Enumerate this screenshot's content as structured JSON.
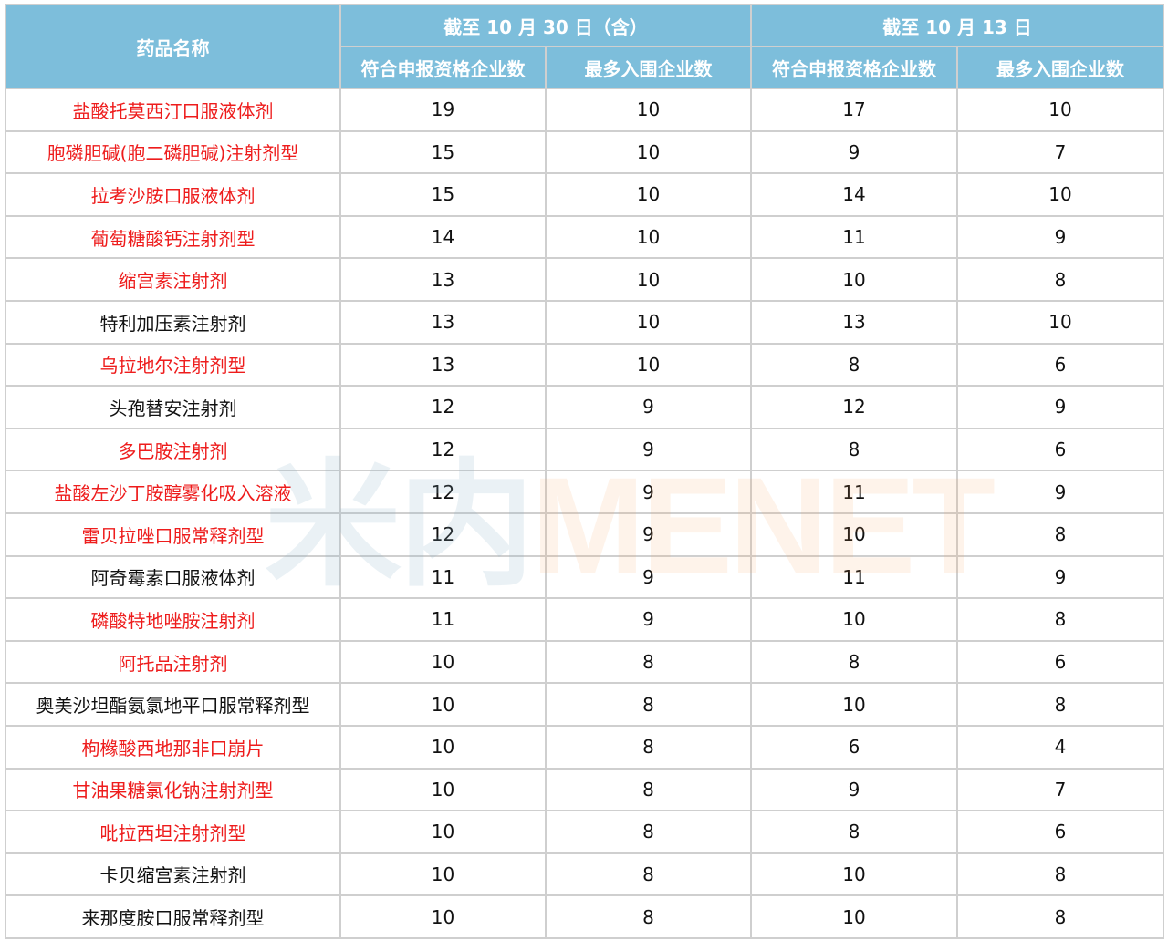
{
  "header": {
    "name_col": "药品名称",
    "group1": "截至 10 月 30 日（含）",
    "group2": "截至 10 月 13 日",
    "sub_eligible": "符合申报资格企业数",
    "sub_max": "最多入围企业数"
  },
  "colors": {
    "header_bg": "#7dbedb",
    "highlight": "#ee1c1c"
  },
  "watermark": {
    "cn": "米内",
    "en": "MENET"
  },
  "rows": [
    {
      "name": "盐酸托莫西汀口服液体剂",
      "red": true,
      "a": "19",
      "b": "10",
      "c": "17",
      "d": "10"
    },
    {
      "name": "胞磷胆碱(胞二磷胆碱)注射剂型",
      "red": true,
      "a": "15",
      "b": "10",
      "c": "9",
      "d": "7"
    },
    {
      "name": "拉考沙胺口服液体剂",
      "red": true,
      "a": "15",
      "b": "10",
      "c": "14",
      "d": "10"
    },
    {
      "name": "葡萄糖酸钙注射剂型",
      "red": true,
      "a": "14",
      "b": "10",
      "c": "11",
      "d": "9"
    },
    {
      "name": "缩宫素注射剂",
      "red": true,
      "a": "13",
      "b": "10",
      "c": "10",
      "d": "8"
    },
    {
      "name": "特利加压素注射剂",
      "red": false,
      "a": "13",
      "b": "10",
      "c": "13",
      "d": "10"
    },
    {
      "name": "乌拉地尔注射剂型",
      "red": true,
      "a": "13",
      "b": "10",
      "c": "8",
      "d": "6"
    },
    {
      "name": "头孢替安注射剂",
      "red": false,
      "a": "12",
      "b": "9",
      "c": "12",
      "d": "9"
    },
    {
      "name": "多巴胺注射剂",
      "red": true,
      "a": "12",
      "b": "9",
      "c": "8",
      "d": "6"
    },
    {
      "name": "盐酸左沙丁胺醇雾化吸入溶液",
      "red": true,
      "a": "12",
      "b": "9",
      "c": "11",
      "d": "9"
    },
    {
      "name": "雷贝拉唑口服常释剂型",
      "red": true,
      "a": "12",
      "b": "9",
      "c": "10",
      "d": "8"
    },
    {
      "name": "阿奇霉素口服液体剂",
      "red": false,
      "a": "11",
      "b": "9",
      "c": "11",
      "d": "9"
    },
    {
      "name": "磷酸特地唑胺注射剂",
      "red": true,
      "a": "11",
      "b": "9",
      "c": "10",
      "d": "8"
    },
    {
      "name": "阿托品注射剂",
      "red": true,
      "a": "10",
      "b": "8",
      "c": "8",
      "d": "6"
    },
    {
      "name": "奥美沙坦酯氨氯地平口服常释剂型",
      "red": false,
      "a": "10",
      "b": "8",
      "c": "10",
      "d": "8"
    },
    {
      "name": "枸橼酸西地那非口崩片",
      "red": true,
      "a": "10",
      "b": "8",
      "c": "6",
      "d": "4"
    },
    {
      "name": "甘油果糖氯化钠注射剂型",
      "red": true,
      "a": "10",
      "b": "8",
      "c": "9",
      "d": "7"
    },
    {
      "name": "吡拉西坦注射剂型",
      "red": true,
      "a": "10",
      "b": "8",
      "c": "8",
      "d": "6"
    },
    {
      "name": "卡贝缩宫素注射剂",
      "red": false,
      "a": "10",
      "b": "8",
      "c": "10",
      "d": "8"
    },
    {
      "name": "来那度胺口服常释剂型",
      "red": false,
      "a": "10",
      "b": "8",
      "c": "10",
      "d": "8"
    }
  ]
}
